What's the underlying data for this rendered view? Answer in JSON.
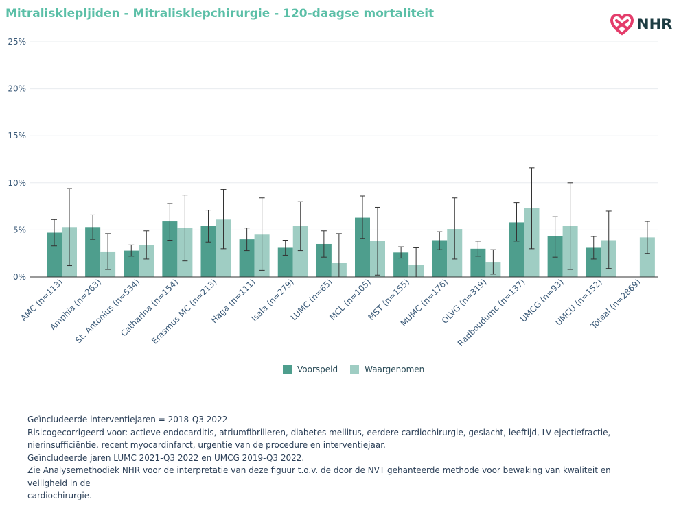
{
  "title": "Mitralisklepljiden - Mitralisklepchirurgie - 120-daagse mortaliteit",
  "logo": {
    "text": "NHR",
    "icon": "nhr-heart-logo-icon"
  },
  "colors": {
    "title": "#5bbfa7",
    "voorspeld": "#4e9e8d",
    "waargenomen": "#9fcdc3",
    "axis": "#3b5a78",
    "grid": "#e8ecef"
  },
  "chart_data": {
    "type": "bar",
    "categories": [
      "AMC (n=113)",
      "Amphia (n=263)",
      "St. Antonius (n=534)",
      "Catharina (n=154)",
      "Erasmus MC (n=213)",
      "Haga (n=111)",
      "Isala (n=279)",
      "LUMC (n=65)",
      "MCL (n=105)",
      "MST (n=155)",
      "MUMC (n=176)",
      "OLVG (n=319)",
      "Radboudumc (n=137)",
      "UMCG (n=93)",
      "UMCU (n=152)",
      "Totaal (n=2869)"
    ],
    "series": [
      {
        "name": "Voorspeld",
        "values": [
          4.7,
          5.3,
          2.8,
          5.9,
          5.4,
          4.0,
          3.1,
          3.5,
          6.3,
          2.6,
          3.9,
          3.0,
          5.8,
          4.3,
          3.1,
          null
        ],
        "ci_low": [
          3.3,
          4.0,
          2.2,
          3.9,
          3.7,
          2.8,
          2.3,
          2.1,
          4.1,
          2.0,
          2.9,
          2.2,
          3.8,
          2.1,
          1.9,
          null
        ],
        "ci_high": [
          6.1,
          6.6,
          3.4,
          7.8,
          7.1,
          5.2,
          3.9,
          4.9,
          8.6,
          3.2,
          4.8,
          3.8,
          7.9,
          6.4,
          4.3,
          null
        ]
      },
      {
        "name": "Waargenomen",
        "values": [
          5.3,
          2.7,
          3.4,
          5.2,
          6.1,
          4.5,
          5.4,
          1.5,
          3.8,
          1.3,
          5.1,
          1.6,
          7.3,
          5.4,
          3.9,
          4.2
        ],
        "ci_low": [
          1.2,
          0.8,
          1.9,
          1.7,
          3.0,
          0.7,
          2.8,
          0.0,
          0.2,
          0.0,
          1.9,
          0.3,
          3.0,
          0.8,
          0.9,
          2.5
        ],
        "ci_high": [
          9.4,
          4.6,
          4.9,
          8.7,
          9.3,
          8.4,
          8.0,
          4.6,
          7.4,
          3.1,
          8.4,
          2.9,
          11.6,
          10.0,
          7.0,
          5.9
        ]
      }
    ],
    "ylim": [
      0,
      25
    ],
    "yticks": [
      "0%",
      "5%",
      "10%",
      "15%",
      "20%",
      "25%"
    ],
    "ytick_values": [
      0,
      5,
      10,
      15,
      20,
      25
    ],
    "grid": true,
    "legend_position": "bottom-center"
  },
  "legend": {
    "voorspeld": "Voorspeld",
    "waargenomen": "Waargenomen"
  },
  "notes": [
    "Geïncludeerde interventiejaren = 2018-Q3 2022",
    "Risicogecorrigeerd voor: actieve endocarditis, atriumfibrilleren, diabetes mellitus, eerdere cardiochirurgie, geslacht, leeftijd, LV-ejectiefractie,",
    "nierinsufficiëntie, recent myocardinfarct, urgentie van de procedure en interventiejaar.",
    "Geïncludeerde jaren LUMC 2021-Q3 2022 en UMCG 2019-Q3 2022.",
    "Zie Analysemethodiek NHR voor de interpretatie van deze figuur t.o.v. de door de NVT gehanteerde methode voor bewaking van kwaliteit en veiligheid in de",
    "cardiochirurgie."
  ]
}
